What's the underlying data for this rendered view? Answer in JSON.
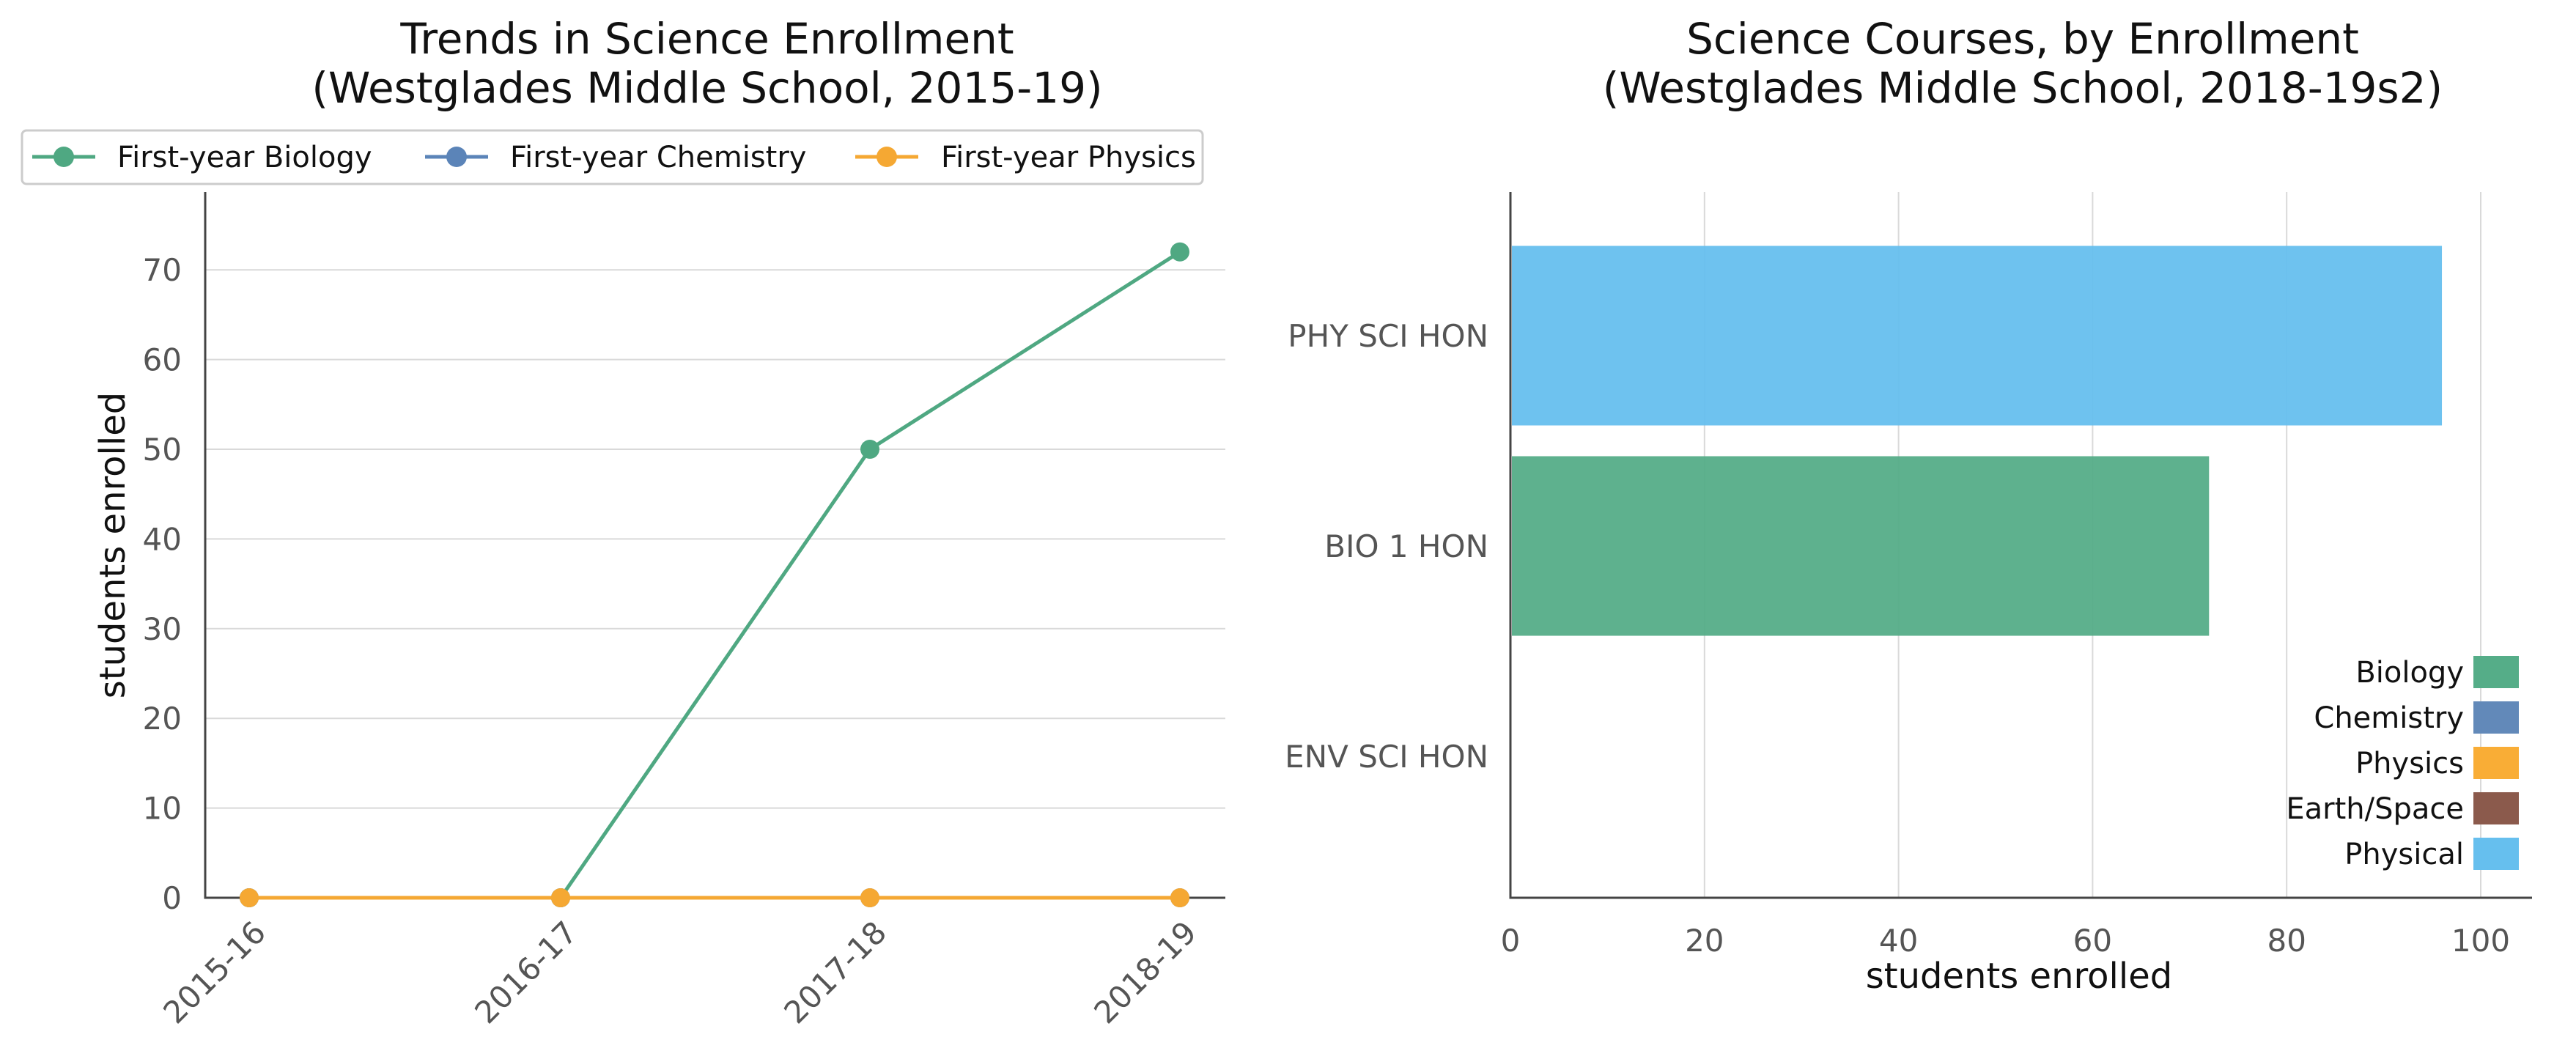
{
  "chart_data": [
    {
      "type": "line",
      "title": "Trends in Science Enrollment",
      "subtitle": "(Westglades Middle School, 2015-19)",
      "xlabel": "",
      "ylabel": "students enrolled",
      "categories": [
        "2015-16",
        "2016-17",
        "2017-18",
        "2018-19"
      ],
      "ylim": [
        0,
        75
      ],
      "yticks": [
        0,
        10,
        20,
        30,
        40,
        50,
        60,
        70
      ],
      "grid": "horizontal",
      "legend_position": "top",
      "series": [
        {
          "name": "First-year Biology",
          "color": "#4fa882",
          "values": [
            0,
            0,
            50,
            72
          ]
        },
        {
          "name": "First-year Chemistry",
          "color": "#5b84b8",
          "values": [
            0,
            0,
            0,
            0
          ]
        },
        {
          "name": "First-year Physics",
          "color": "#f5a833",
          "values": [
            0,
            0,
            0,
            0
          ]
        }
      ]
    },
    {
      "type": "bar",
      "orientation": "horizontal",
      "title": "Science Courses, by Enrollment",
      "subtitle": "(Westglades Middle School, 2018-19s2)",
      "xlabel": "students enrolled",
      "ylabel": "",
      "categories": [
        "PHY SCI HON",
        "BIO 1 HON",
        "ENV SCI HON"
      ],
      "values": [
        96,
        72,
        0
      ],
      "bar_groups": [
        "Physical",
        "Biology",
        "Earth/Space"
      ],
      "xlim": [
        0,
        100
      ],
      "xticks": [
        0,
        20,
        40,
        60,
        80,
        100
      ],
      "grid": "vertical",
      "legend_position": "bottom-right",
      "legend": [
        {
          "name": "Biology",
          "color": "#55ad88"
        },
        {
          "name": "Chemistry",
          "color": "#6289b9"
        },
        {
          "name": "Physics",
          "color": "#f9ad36"
        },
        {
          "name": "Earth/Space",
          "color": "#8b5a4c"
        },
        {
          "name": "Physical",
          "color": "#66bfee"
        }
      ]
    }
  ]
}
